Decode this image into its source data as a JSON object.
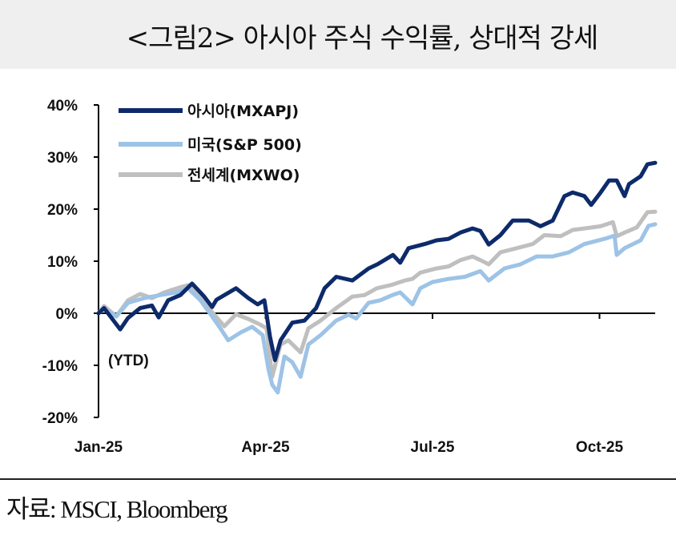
{
  "title": "<그림2> 아시아 주식 수익률, 상대적 강세",
  "source": "자료: MSCI, Bloomberg",
  "chart_data": {
    "type": "line",
    "title": "<그림2> 아시아 주식 수익률, 상대적 강세",
    "annotation": "(YTD)",
    "xlabel": "",
    "ylabel": "",
    "x_unit": "months since Jan-25",
    "xlim": [
      0,
      10
    ],
    "ylim": [
      -20,
      40
    ],
    "yticks": [
      -20,
      -10,
      0,
      10,
      20,
      30,
      40
    ],
    "ytick_labels": [
      "-20%",
      "-10%",
      "0%",
      "10%",
      "20%",
      "30%",
      "40%"
    ],
    "xticks": [
      0,
      3,
      6,
      9
    ],
    "xtick_labels": [
      "Jan-25",
      "Apr-25",
      "Jul-25",
      "Oct-25"
    ],
    "legend": "top-left",
    "grid": false,
    "series": [
      {
        "name": "아시아(MXAPJ)",
        "color": "#0d2a6b",
        "x": [
          0,
          0.1,
          0.39,
          0.53,
          0.75,
          0.96,
          1.08,
          1.25,
          1.47,
          1.68,
          1.9,
          2.04,
          2.12,
          2.47,
          2.69,
          2.86,
          2.98,
          3.08,
          3.17,
          3.27,
          3.48,
          3.7,
          3.91,
          4.06,
          4.27,
          4.56,
          4.85,
          5.01,
          5.29,
          5.42,
          5.57,
          5.86,
          6.07,
          6.29,
          6.5,
          6.72,
          6.86,
          7.01,
          7.22,
          7.44,
          7.73,
          7.94,
          8.16,
          8.37,
          8.52,
          8.73,
          8.85,
          9.02,
          9.17,
          9.31,
          9.45,
          9.53,
          9.74,
          9.86,
          10.0
        ],
        "values": [
          0,
          1,
          -3.1,
          -0.9,
          1,
          1.5,
          -0.8,
          2.5,
          3.5,
          5.7,
          3.2,
          1.2,
          2.6,
          4.8,
          2.9,
          1.7,
          2.5,
          -4.5,
          -9,
          -5.2,
          -1.8,
          -1.4,
          1,
          4.8,
          7,
          6.3,
          8.6,
          9.4,
          11.2,
          9.7,
          12.5,
          13.3,
          14,
          14.3,
          15.5,
          16.3,
          15.8,
          13.2,
          15,
          17.8,
          17.8,
          16.7,
          17.8,
          22.5,
          23.2,
          22.5,
          20.8,
          23.2,
          25.5,
          25.5,
          22.5,
          24.8,
          26.3,
          28.6,
          28.9
        ]
      },
      {
        "name": "미국(S&P 500)",
        "color": "#9dc3e6",
        "x": [
          0,
          0.1,
          0.32,
          0.53,
          0.82,
          1.11,
          1.4,
          1.61,
          1.83,
          2.04,
          2.19,
          2.33,
          2.55,
          2.76,
          2.95,
          3.05,
          3.12,
          3.22,
          3.34,
          3.48,
          3.63,
          3.77,
          3.99,
          4.27,
          4.49,
          4.63,
          4.85,
          5.06,
          5.28,
          5.42,
          5.64,
          5.78,
          6.0,
          6.29,
          6.58,
          6.86,
          7.01,
          7.29,
          7.58,
          7.87,
          8.16,
          8.45,
          8.73,
          9.09,
          9.27,
          9.31,
          9.45,
          9.74,
          9.88,
          10.0
        ],
        "values": [
          0,
          0.8,
          -0.6,
          2,
          2.9,
          3.5,
          4,
          4.8,
          2.5,
          -0.6,
          -2.9,
          -5.2,
          -3.7,
          -2.6,
          -4.2,
          -10.6,
          -13.7,
          -15.2,
          -8.3,
          -9.4,
          -12.2,
          -6,
          -4.2,
          -1.4,
          -0.3,
          -1,
          2,
          2.5,
          3.5,
          4,
          1.7,
          4.8,
          6,
          6.6,
          7,
          8.1,
          6.3,
          8.6,
          9.4,
          10.9,
          10.9,
          11.7,
          13.3,
          14.3,
          14.9,
          11.2,
          12.5,
          14,
          16.8,
          17.1
        ]
      },
      {
        "name": "전세계(MXWO)",
        "color": "#bfbfbf",
        "x": [
          0,
          0.1,
          0.32,
          0.53,
          0.75,
          0.96,
          1.18,
          1.47,
          1.61,
          1.83,
          2.04,
          2.26,
          2.47,
          2.69,
          2.91,
          3.02,
          3.12,
          3.27,
          3.41,
          3.63,
          3.77,
          3.99,
          4.27,
          4.56,
          4.78,
          5.0,
          5.28,
          5.5,
          5.64,
          5.78,
          6.07,
          6.29,
          6.5,
          6.72,
          6.86,
          7.01,
          7.22,
          7.51,
          7.8,
          8.01,
          8.3,
          8.52,
          8.73,
          9.02,
          9.24,
          9.31,
          9.45,
          9.67,
          9.86,
          10.0
        ],
        "values": [
          0,
          1.4,
          -0.6,
          2.5,
          3.7,
          2.9,
          4,
          5,
          5.4,
          3.2,
          0.2,
          -2.5,
          -0.2,
          -1.1,
          -2.2,
          -2.9,
          -12.2,
          -6,
          -5.2,
          -7.5,
          -2.9,
          -1.4,
          1,
          3.2,
          3.5,
          4.8,
          5.5,
          6.3,
          6.6,
          7.8,
          8.6,
          9,
          10.2,
          10.9,
          10.2,
          9.4,
          11.7,
          12.5,
          13.3,
          15,
          14.8,
          16,
          16.3,
          16.7,
          17.5,
          14.8,
          15.5,
          16.5,
          19.4,
          19.5
        ]
      }
    ]
  }
}
